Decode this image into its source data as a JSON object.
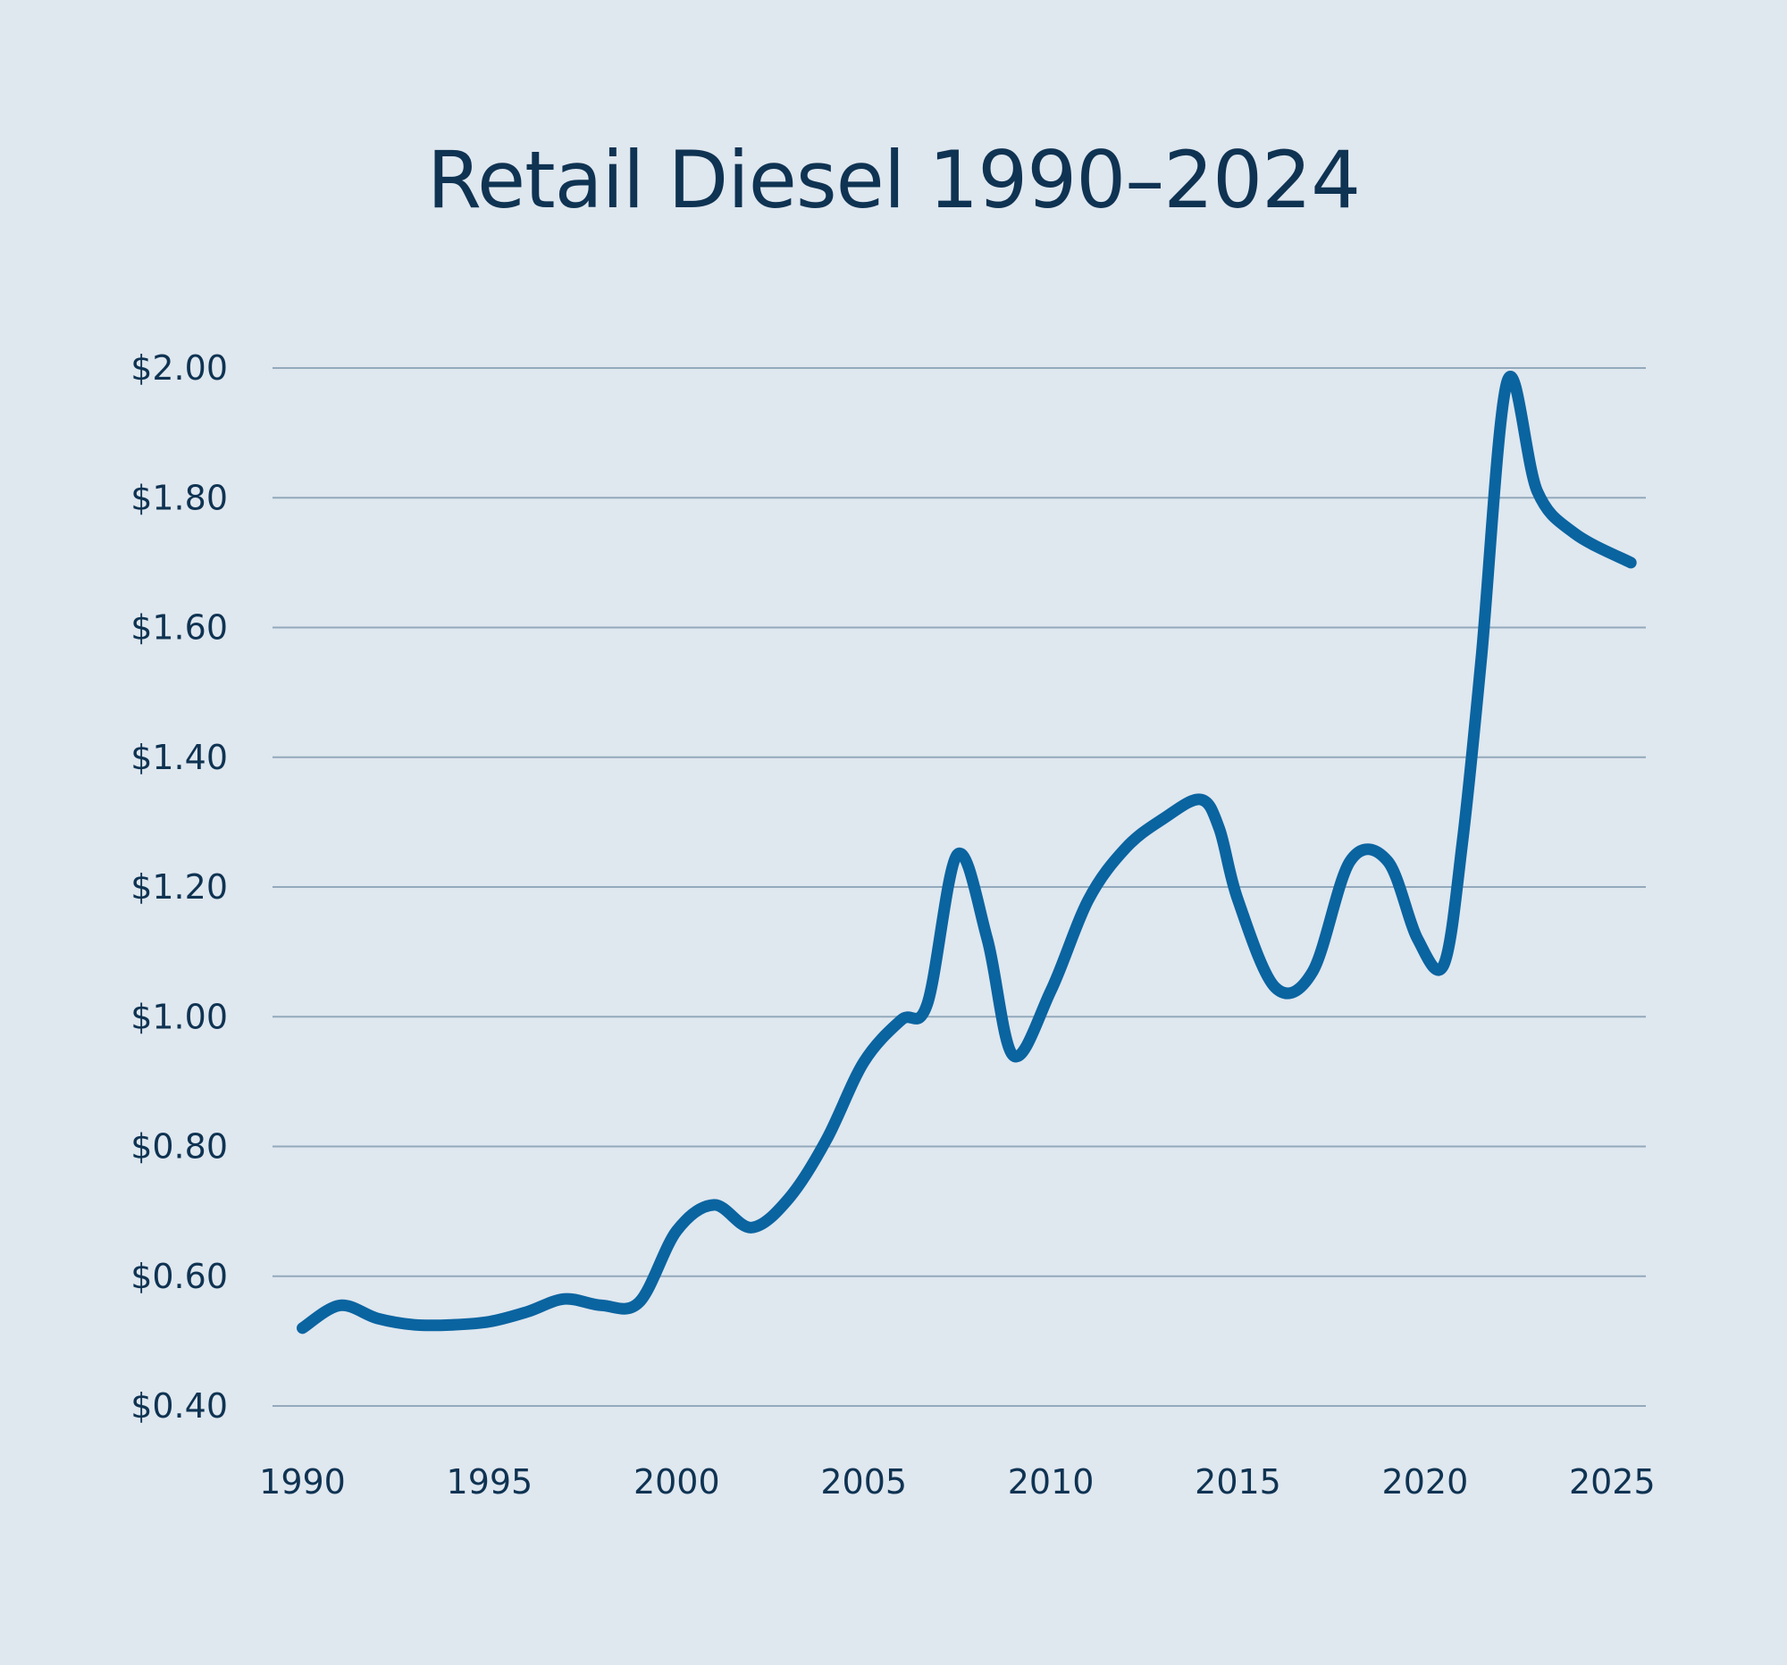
{
  "chart_data": {
    "type": "line",
    "title": "Retail Diesel 1990–2024",
    "xlabel": "",
    "ylabel": "",
    "xlim": [
      1989.2,
      2025.9
    ],
    "ylim": [
      0.4,
      2.0
    ],
    "x_ticks": [
      1990,
      1995,
      2000,
      2005,
      2010,
      2015,
      2020,
      2025
    ],
    "y_ticks": [
      0.4,
      0.6,
      0.8,
      1.0,
      1.2,
      1.4,
      1.6,
      1.8,
      2.0
    ],
    "y_tick_labels": [
      "$0.40",
      "$0.60",
      "$0.80",
      "$1.00",
      "$1.20",
      "$1.40",
      "$1.60",
      "$1.80",
      "$2.00"
    ],
    "grid": true,
    "legend": "none",
    "line_color": "#0a64a0",
    "series": [
      {
        "values": [
          {
            "x": 1990.0,
            "y": 0.52
          },
          {
            "x": 1991.0,
            "y": 0.555
          },
          {
            "x": 1992.0,
            "y": 0.535
          },
          {
            "x": 1993.0,
            "y": 0.525
          },
          {
            "x": 1994.0,
            "y": 0.525
          },
          {
            "x": 1995.0,
            "y": 0.53
          },
          {
            "x": 1996.0,
            "y": 0.545
          },
          {
            "x": 1997.0,
            "y": 0.565
          },
          {
            "x": 1998.0,
            "y": 0.555
          },
          {
            "x": 1999.0,
            "y": 0.56
          },
          {
            "x": 2000.0,
            "y": 0.67
          },
          {
            "x": 2001.0,
            "y": 0.71
          },
          {
            "x": 2002.0,
            "y": 0.675
          },
          {
            "x": 2003.0,
            "y": 0.72
          },
          {
            "x": 2004.0,
            "y": 0.81
          },
          {
            "x": 2005.0,
            "y": 0.93
          },
          {
            "x": 2006.0,
            "y": 0.995
          },
          {
            "x": 2006.7,
            "y": 1.02
          },
          {
            "x": 2007.5,
            "y": 1.25
          },
          {
            "x": 2008.3,
            "y": 1.12
          },
          {
            "x": 2009.0,
            "y": 0.94
          },
          {
            "x": 2010.0,
            "y": 1.04
          },
          {
            "x": 2011.0,
            "y": 1.18
          },
          {
            "x": 2012.0,
            "y": 1.26
          },
          {
            "x": 2013.0,
            "y": 1.305
          },
          {
            "x": 2014.0,
            "y": 1.335
          },
          {
            "x": 2014.5,
            "y": 1.29
          },
          {
            "x": 2015.0,
            "y": 1.18
          },
          {
            "x": 2016.0,
            "y": 1.045
          },
          {
            "x": 2017.0,
            "y": 1.07
          },
          {
            "x": 2018.0,
            "y": 1.24
          },
          {
            "x": 2019.0,
            "y": 1.24
          },
          {
            "x": 2019.8,
            "y": 1.12
          },
          {
            "x": 2020.5,
            "y": 1.08
          },
          {
            "x": 2021.0,
            "y": 1.27
          },
          {
            "x": 2021.5,
            "y": 1.55
          },
          {
            "x": 2022.2,
            "y": 1.98
          },
          {
            "x": 2023.0,
            "y": 1.81
          },
          {
            "x": 2024.0,
            "y": 1.745
          },
          {
            "x": 2025.5,
            "y": 1.7
          }
        ]
      }
    ]
  }
}
